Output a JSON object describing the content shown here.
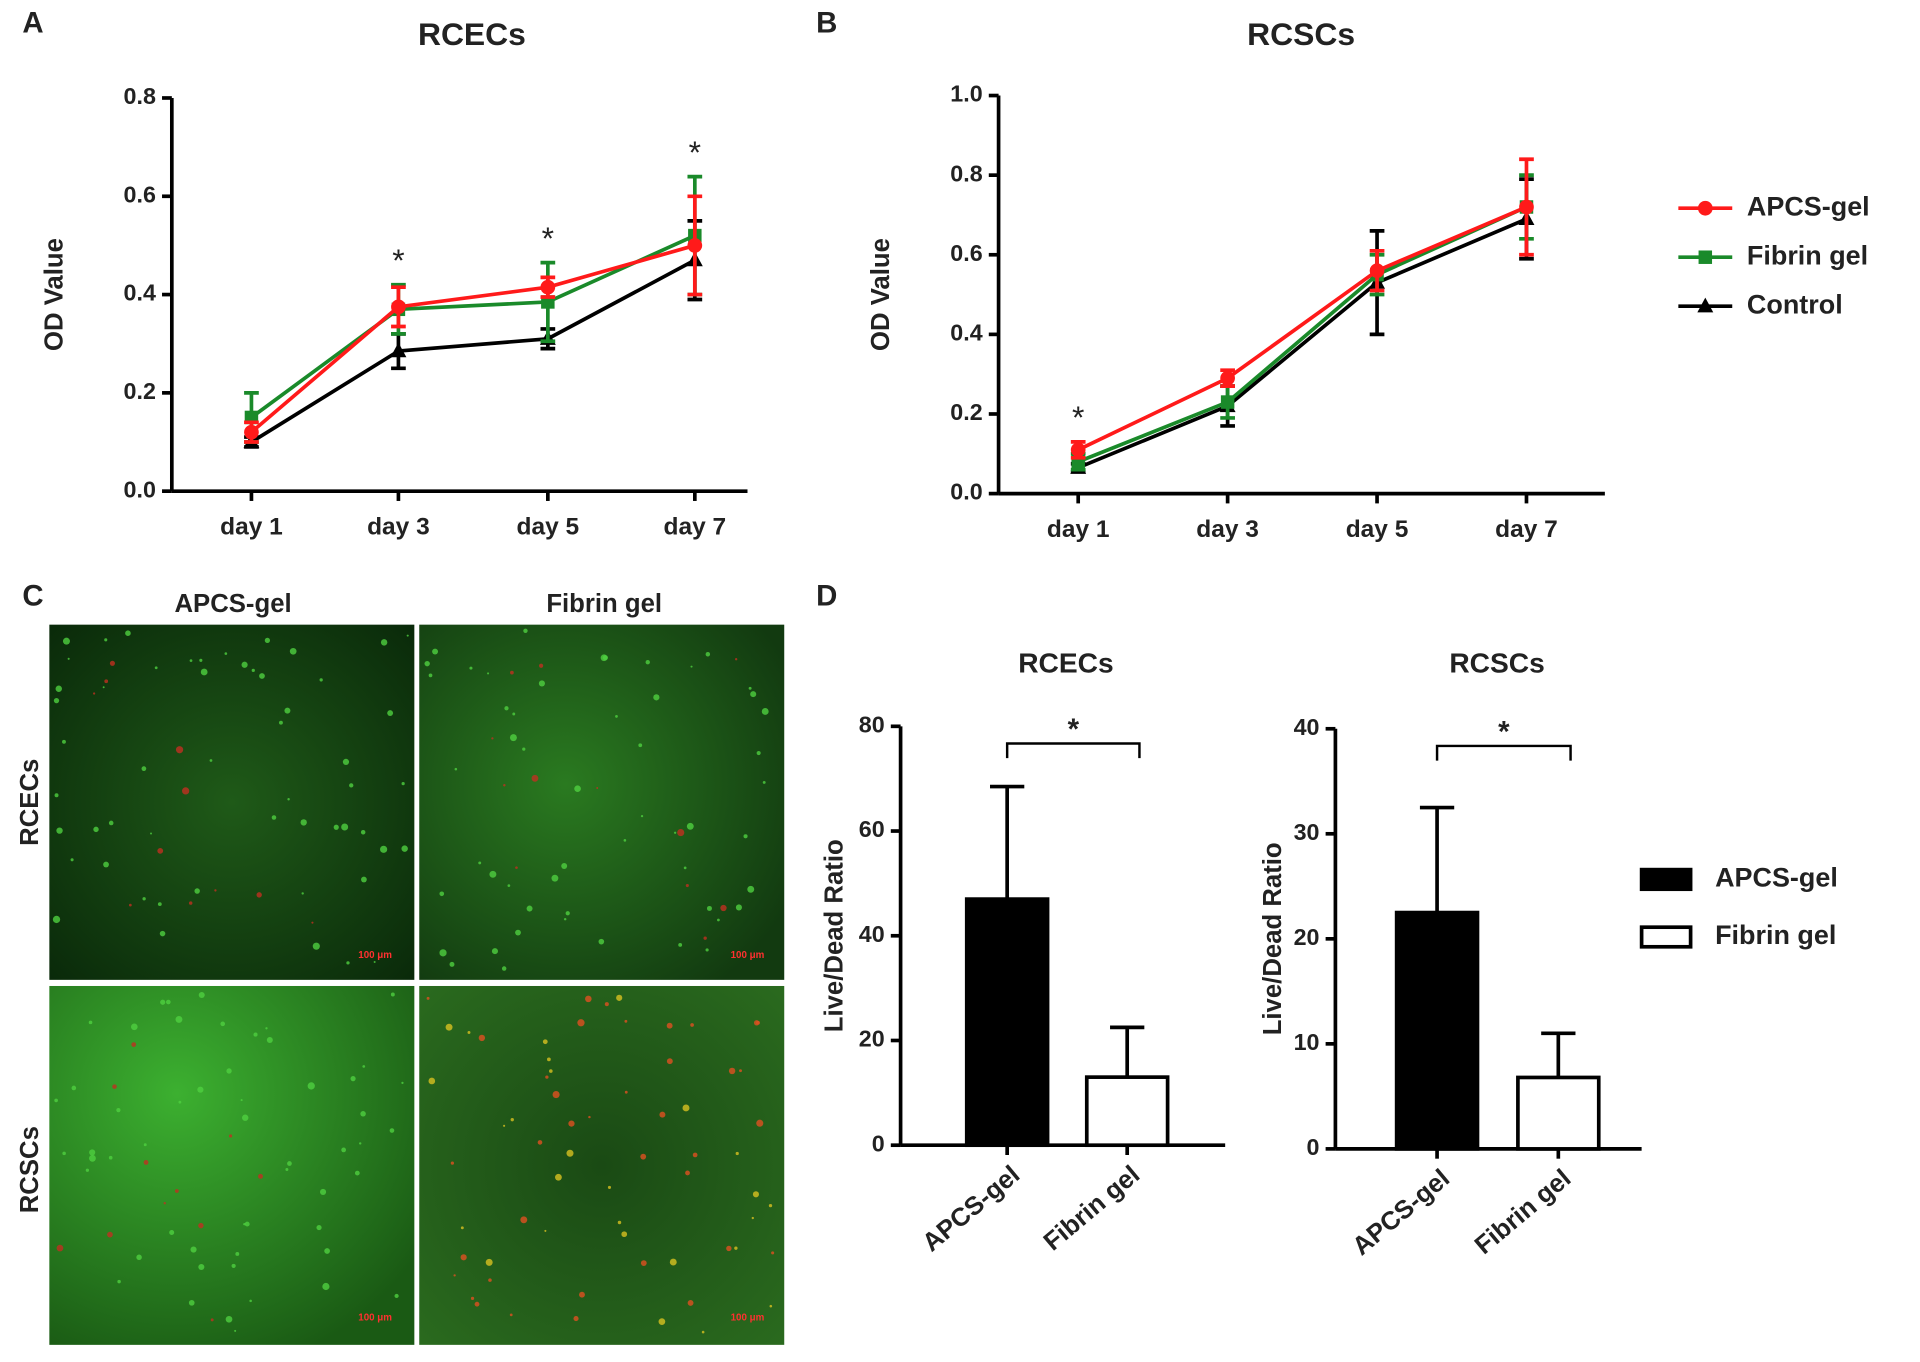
{
  "panel_labels": [
    "A",
    "B",
    "C",
    "D"
  ],
  "chart_data": [
    {
      "type": "line",
      "title": "RCECs",
      "y_label": "OD Value",
      "categories": [
        "day 1",
        "day 3",
        "day 5",
        "day 7"
      ],
      "ylim": [
        0,
        0.8
      ],
      "yticks": [
        {
          "value": 0,
          "label": "0.0"
        },
        0.2,
        0.4,
        0.6,
        0.8
      ],
      "significance": [
        null,
        "*",
        "*",
        "*"
      ],
      "series": [
        {
          "color": "#000000",
          "marker": "triangle",
          "values": [
            0.1,
            0.285,
            0.31,
            0.47
          ],
          "errors": [
            0.01,
            0.035,
            0.02,
            0.08
          ]
        },
        {
          "color": "#1a8a2a",
          "marker": "square",
          "values": [
            0.15,
            0.37,
            0.385,
            0.52
          ],
          "errors": [
            0.05,
            0.05,
            0.08,
            0.12
          ]
        },
        {
          "color": "#ff1a1a",
          "marker": "circle",
          "values": [
            0.12,
            0.375,
            0.415,
            0.5
          ],
          "errors": [
            0.02,
            0.04,
            0.02,
            0.1
          ]
        }
      ]
    },
    {
      "type": "line",
      "title": "RCSCs",
      "y_label": "OD Value",
      "categories": [
        "day 1",
        "day 3",
        "day 5",
        "day 7"
      ],
      "ylim": [
        0,
        1.0
      ],
      "yticks": [
        {
          "value": 0,
          "label": "0.0"
        },
        0.2,
        0.4,
        0.6,
        0.8,
        {
          "value": 1.0,
          "label": "1.0"
        }
      ],
      "significance": [
        "*",
        null,
        null,
        null
      ],
      "legend": "right",
      "series": [
        {
          "name": "Control",
          "color": "#000000",
          "marker": "triangle",
          "values": [
            0.065,
            0.22,
            0.53,
            0.69
          ],
          "errors": [
            0.01,
            0.05,
            0.13,
            0.1
          ]
        },
        {
          "name": "Fibrin gel",
          "color": "#1a8a2a",
          "marker": "square",
          "values": [
            0.08,
            0.23,
            0.55,
            0.72
          ],
          "errors": [
            0.02,
            0.04,
            0.05,
            0.08
          ]
        },
        {
          "name": "APCS-gel",
          "color": "#ff1a1a",
          "marker": "circle",
          "values": [
            0.11,
            0.29,
            0.56,
            0.72
          ],
          "errors": [
            0.02,
            0.02,
            0.05,
            0.12
          ]
        }
      ]
    },
    {
      "type": "bar",
      "title": "RCECs",
      "y_label": "Live/Dead Ratio",
      "categories": [
        "APCS-gel",
        "Fibrin gel"
      ],
      "values": [
        47,
        13
      ],
      "errors": [
        21.5,
        9.5
      ],
      "colors": [
        "#000000",
        "#ffffff"
      ],
      "ylim": [
        0,
        80
      ],
      "yticks": [
        0,
        20,
        40,
        60,
        80
      ],
      "comparison": "*"
    },
    {
      "type": "bar",
      "title": "RCSCs",
      "y_label": "Live/Dead Ratio",
      "categories": [
        "APCS-gel",
        "Fibrin gel"
      ],
      "values": [
        22.5,
        6.8
      ],
      "errors": [
        10,
        4.2
      ],
      "colors": [
        "#000000",
        "#ffffff"
      ],
      "ylim": [
        0,
        40
      ],
      "yticks": [
        0,
        10,
        20,
        30,
        40
      ],
      "comparison": "*",
      "legend": "right"
    }
  ],
  "image_panel": {
    "columns": [
      "APCS-gel",
      "Fibrin gel"
    ],
    "rows": [
      "RCECs",
      "RCSCs"
    ],
    "scale_bar": "100 μm"
  }
}
